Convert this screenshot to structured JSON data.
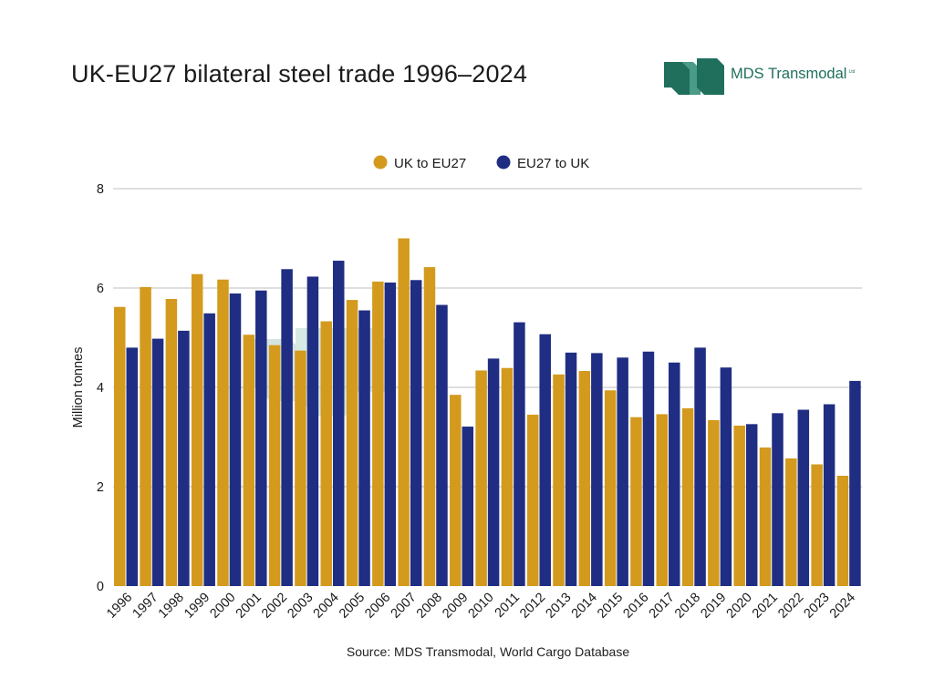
{
  "header": {
    "title": "UK-EU27 bilateral steel trade 1996–2024",
    "logo_text": "MDS Transmodal",
    "logo_suffix": "Ltd"
  },
  "footer": {
    "source": "Source: MDS Transmodal, World Cargo Database"
  },
  "colors": {
    "uk_to_eu27": "#D39A1E",
    "eu27_to_uk": "#1F2E82",
    "brand_green": "#1F6F5C",
    "gridline": "#BFBFBF"
  },
  "chart_data": {
    "type": "bar",
    "ylabel": "Million tonnes",
    "xlabel": "",
    "ylim": [
      0,
      8
    ],
    "yticks": [
      0,
      2,
      4,
      6,
      8
    ],
    "grid": true,
    "legend_position": "top-center",
    "categories": [
      "1996",
      "1997",
      "1998",
      "1999",
      "2000",
      "2001",
      "2002",
      "2003",
      "2004",
      "2005",
      "2006",
      "2007",
      "2008",
      "2009",
      "2010",
      "2011",
      "2012",
      "2013",
      "2014",
      "2015",
      "2016",
      "2017",
      "2018",
      "2019",
      "2020",
      "2021",
      "2022",
      "2023",
      "2024"
    ],
    "series": [
      {
        "name": "UK to EU27",
        "color": "#D39A1E",
        "values": [
          5.62,
          6.02,
          5.78,
          6.28,
          6.17,
          5.06,
          4.85,
          4.74,
          5.33,
          5.76,
          6.13,
          7.0,
          6.42,
          3.85,
          4.34,
          4.39,
          3.45,
          4.26,
          4.33,
          3.94,
          3.4,
          3.46,
          3.58,
          3.34,
          3.23,
          2.79,
          2.57,
          2.45,
          2.22
        ]
      },
      {
        "name": "EU27 to UK",
        "color": "#1F2E82",
        "values": [
          4.8,
          4.98,
          5.14,
          5.49,
          5.89,
          5.95,
          6.38,
          6.23,
          6.55,
          5.55,
          6.11,
          6.16,
          5.66,
          3.21,
          4.58,
          5.31,
          5.07,
          4.7,
          4.69,
          4.6,
          4.72,
          4.5,
          4.8,
          4.4,
          3.26,
          3.48,
          3.55,
          3.66,
          4.13
        ]
      }
    ]
  }
}
